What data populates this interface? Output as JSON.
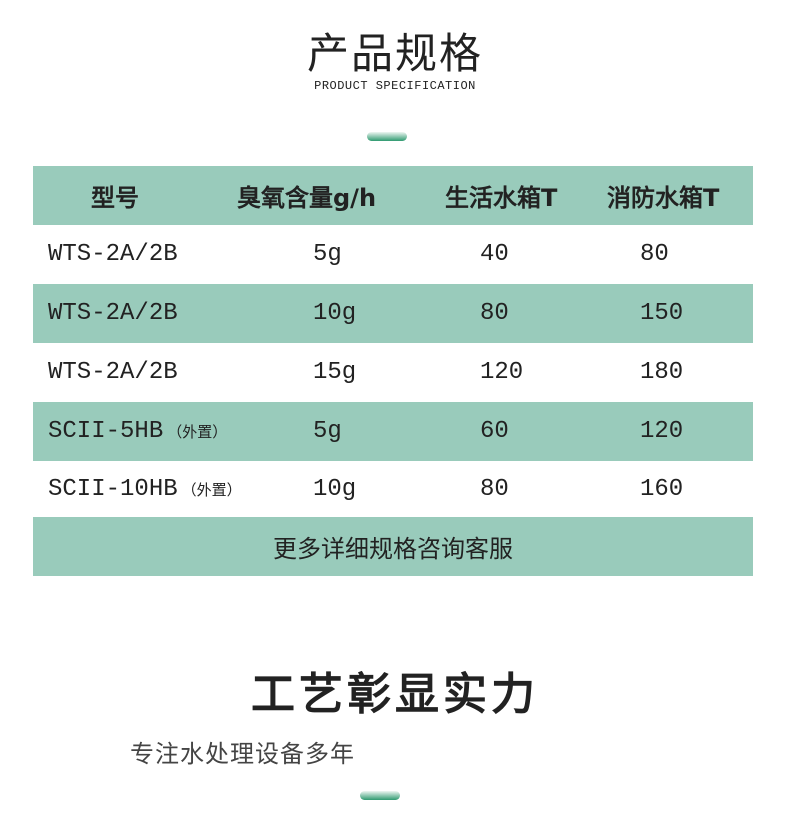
{
  "section1": {
    "title": "产品规格",
    "subtitle": "PRODUCT SPECIFICATION"
  },
  "table": {
    "headers": [
      "型号",
      "臭氧含量g/h",
      "生活水箱T",
      "消防水箱T"
    ],
    "rows": [
      {
        "model": "WTS-2A/2B",
        "note": "",
        "ozone": "5g",
        "domestic": "40",
        "fire": "80"
      },
      {
        "model": "WTS-2A/2B",
        "note": "",
        "ozone": "10g",
        "domestic": "80",
        "fire": "150"
      },
      {
        "model": "WTS-2A/2B",
        "note": "",
        "ozone": "15g",
        "domestic": "120",
        "fire": "180"
      },
      {
        "model": "SCII-5HB",
        "note": "（外置）",
        "ozone": "5g",
        "domestic": "60",
        "fire": "120"
      },
      {
        "model": "SCII-10HB",
        "note": "（外置）",
        "ozone": "10g",
        "domestic": "80",
        "fire": "160"
      }
    ],
    "footer": "更多详细规格咨询客服"
  },
  "section2": {
    "title": "工艺彰显实力",
    "subtitle": "专注水处理设备多年"
  },
  "colors": {
    "table_green": "#99cbbb",
    "accent_bar": "#2f9a70"
  }
}
